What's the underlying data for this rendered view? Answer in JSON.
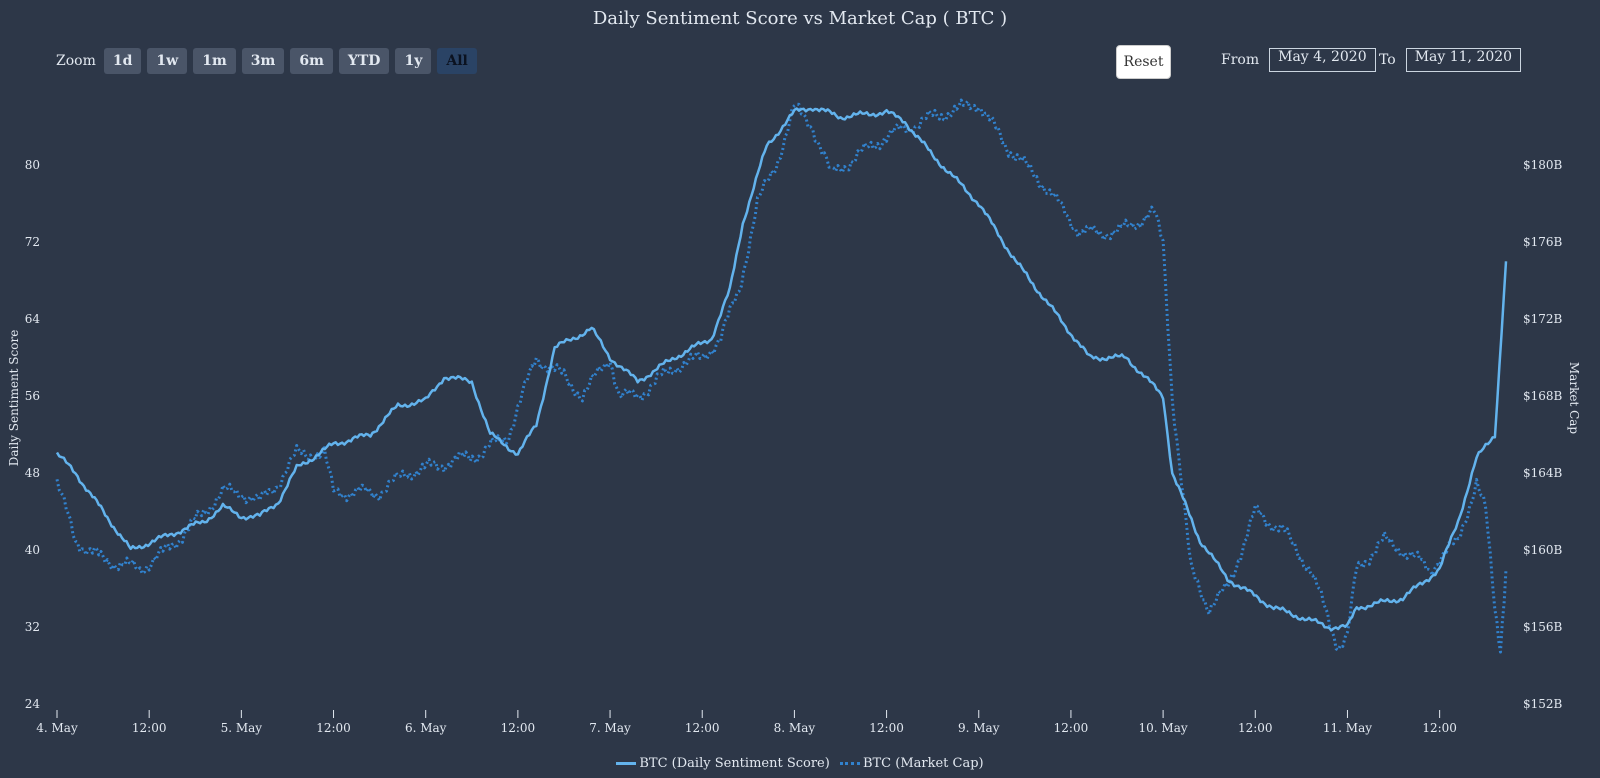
{
  "chart": {
    "title": "Daily Sentiment Score vs Market Cap ( BTC )",
    "zoom_label": "Zoom",
    "zoom_buttons": [
      "1d",
      "1w",
      "1m",
      "3m",
      "6m",
      "YTD",
      "1y",
      "All"
    ],
    "active_zoom": "All",
    "reset_label": "Reset",
    "from_label": "From",
    "from_value": "May 4, 2020",
    "to_label": "To",
    "to_value": "May 11, 2020"
  },
  "colors": {
    "background": "#2d3748",
    "sentiment": "#63b3ed",
    "marketcap": "#3182ce",
    "text": "#e2e8f0"
  },
  "chart_data": {
    "type": "line",
    "xlabel": "",
    "ylabel": "Daily Sentiment Score",
    "y2label": "Market Cap",
    "ylim": [
      24,
      88
    ],
    "y2lim": [
      152,
      184
    ],
    "yticks": [
      "24",
      "32",
      "40",
      "48",
      "56",
      "64",
      "72",
      "80"
    ],
    "y2ticks": [
      "$152B",
      "$156B",
      "$160B",
      "$164B",
      "$168B",
      "$172B",
      "$176B",
      "$180B"
    ],
    "xticks": [
      "4. May",
      "12:00",
      "5. May",
      "12:00",
      "6. May",
      "12:00",
      "7. May",
      "12:00",
      "8. May",
      "12:00",
      "9. May",
      "12:00",
      "10. May",
      "12:00",
      "11. May",
      "12:00"
    ],
    "xlim": [
      0,
      7.86
    ],
    "legend_position": "bottom-center",
    "grid": false,
    "series": [
      {
        "name": "BTC (Daily Sentiment Score)",
        "axis": "left",
        "style": "solid",
        "points": [
          [
            0,
            50
          ],
          [
            0.1,
            48
          ],
          [
            0.25,
            44
          ],
          [
            0.4,
            40
          ],
          [
            0.6,
            41.5
          ],
          [
            0.8,
            43
          ],
          [
            0.9,
            44.5
          ],
          [
            1.0,
            43.5
          ],
          [
            1.1,
            43.5
          ],
          [
            1.2,
            45
          ],
          [
            1.3,
            48.5
          ],
          [
            1.5,
            51
          ],
          [
            1.7,
            52
          ],
          [
            1.85,
            55
          ],
          [
            2.0,
            55.5
          ],
          [
            2.1,
            58
          ],
          [
            2.25,
            57.5
          ],
          [
            2.35,
            52
          ],
          [
            2.5,
            50
          ],
          [
            2.6,
            53
          ],
          [
            2.7,
            61
          ],
          [
            2.85,
            62.5
          ],
          [
            2.9,
            63
          ],
          [
            3.0,
            60
          ],
          [
            3.15,
            57.5
          ],
          [
            3.35,
            60
          ],
          [
            3.55,
            62
          ],
          [
            3.65,
            67
          ],
          [
            3.72,
            74
          ],
          [
            3.85,
            82
          ],
          [
            4.0,
            85.5
          ],
          [
            4.1,
            86
          ],
          [
            4.25,
            85
          ],
          [
            4.5,
            85.5
          ],
          [
            4.6,
            84.5
          ],
          [
            4.75,
            81
          ],
          [
            5.0,
            76
          ],
          [
            5.2,
            70
          ],
          [
            5.4,
            65
          ],
          [
            5.6,
            60
          ],
          [
            5.8,
            60
          ],
          [
            6.0,
            56
          ],
          [
            6.05,
            48
          ],
          [
            6.2,
            41
          ],
          [
            6.35,
            37
          ],
          [
            6.6,
            34
          ],
          [
            6.9,
            32
          ],
          [
            7.0,
            32
          ],
          [
            7.05,
            34
          ],
          [
            7.3,
            35
          ],
          [
            7.5,
            38
          ],
          [
            7.6,
            43
          ],
          [
            7.7,
            49.5
          ],
          [
            7.8,
            52
          ],
          [
            7.86,
            70
          ]
        ]
      },
      {
        "name": "BTC (Market Cap)",
        "axis": "right",
        "style": "dotted",
        "points": [
          [
            0,
            163.5
          ],
          [
            0.1,
            160.5
          ],
          [
            0.25,
            159.5
          ],
          [
            0.45,
            159
          ],
          [
            0.6,
            160
          ],
          [
            0.75,
            161.5
          ],
          [
            0.9,
            163
          ],
          [
            1.0,
            163
          ],
          [
            1.1,
            162.5
          ],
          [
            1.2,
            163.5
          ],
          [
            1.3,
            165
          ],
          [
            1.45,
            165
          ],
          [
            1.5,
            163
          ],
          [
            1.75,
            163
          ],
          [
            1.9,
            164
          ],
          [
            2.1,
            164.5
          ],
          [
            2.3,
            165
          ],
          [
            2.45,
            166
          ],
          [
            2.6,
            170
          ],
          [
            2.75,
            169
          ],
          [
            2.85,
            168
          ],
          [
            3.0,
            170
          ],
          [
            3.05,
            168
          ],
          [
            3.15,
            168
          ],
          [
            3.35,
            169.5
          ],
          [
            3.5,
            170
          ],
          [
            3.6,
            171
          ],
          [
            3.7,
            173.5
          ],
          [
            3.8,
            178
          ],
          [
            3.9,
            180
          ],
          [
            4.0,
            183
          ],
          [
            4.1,
            182
          ],
          [
            4.2,
            179.5
          ],
          [
            4.5,
            181.5
          ],
          [
            4.75,
            182.5
          ],
          [
            5.0,
            183.2
          ],
          [
            5.15,
            181
          ],
          [
            5.35,
            179
          ],
          [
            5.55,
            176.5
          ],
          [
            5.75,
            176.5
          ],
          [
            5.95,
            177.5
          ],
          [
            6.0,
            176
          ],
          [
            6.05,
            168
          ],
          [
            6.15,
            159
          ],
          [
            6.25,
            157
          ],
          [
            6.35,
            158
          ],
          [
            6.5,
            162
          ],
          [
            6.65,
            161
          ],
          [
            6.8,
            159
          ],
          [
            6.95,
            155
          ],
          [
            7.0,
            155.5
          ],
          [
            7.05,
            159
          ],
          [
            7.2,
            160.5
          ],
          [
            7.3,
            160
          ],
          [
            7.45,
            159
          ],
          [
            7.6,
            160.5
          ],
          [
            7.7,
            163.5
          ],
          [
            7.75,
            162
          ],
          [
            7.8,
            157
          ],
          [
            7.83,
            155
          ],
          [
            7.86,
            159
          ]
        ]
      }
    ]
  }
}
